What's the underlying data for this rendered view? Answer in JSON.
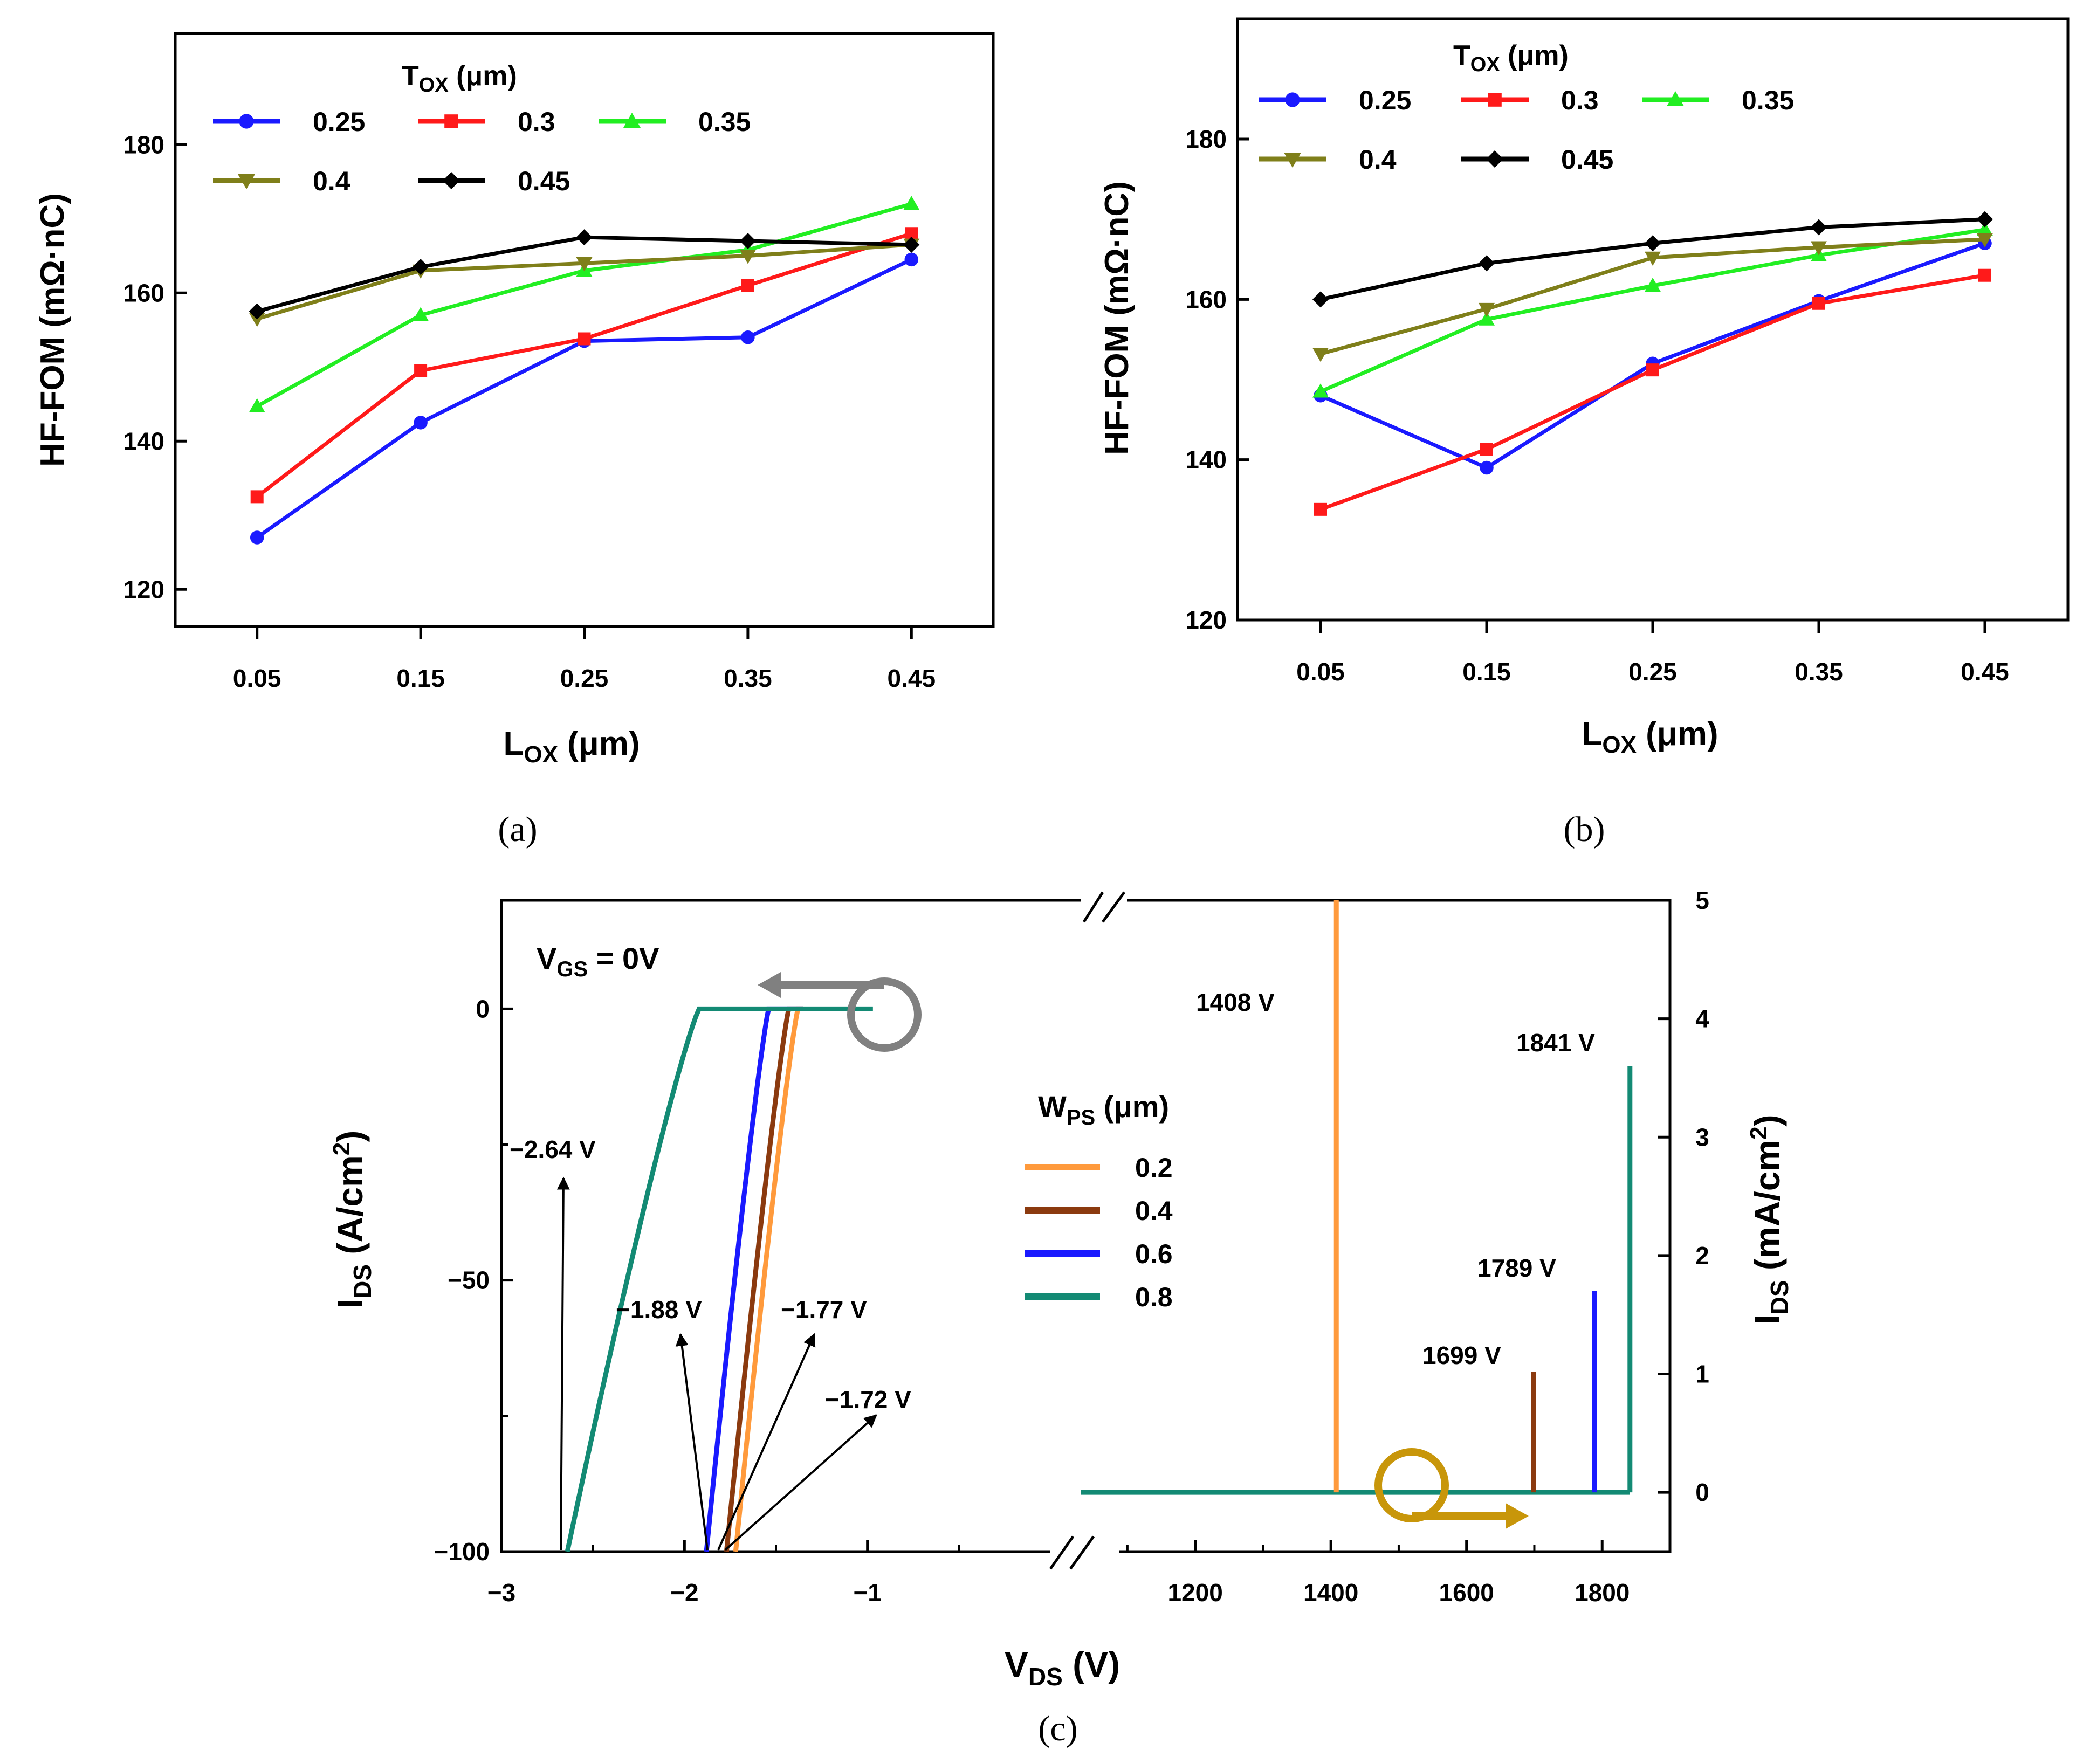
{
  "chart_data": [
    {
      "id": "a",
      "type": "line",
      "panel_label": "(a)",
      "xlabel": "L",
      "xlabel_sub": "OX",
      "xlabel_unit": " (μm)",
      "ylabel": "HF-FOM (mΩ·nC)",
      "legend_title": "T",
      "legend_title_sub": "OX",
      "legend_title_unit": " (μm)",
      "categories": [
        "0.05",
        "0.15",
        "0.25",
        "0.35",
        "0.45"
      ],
      "x": [
        0.05,
        0.15,
        0.25,
        0.35,
        0.45
      ],
      "xlim": [
        0.0,
        0.5
      ],
      "ylim": [
        115,
        195
      ],
      "yticks": [
        120,
        140,
        160,
        180
      ],
      "series": [
        {
          "name": "0.25",
          "color": "#1a1aff",
          "marker": "circle",
          "values": [
            127,
            142.5,
            153.5,
            154,
            164.5
          ]
        },
        {
          "name": "0.3",
          "color": "#ff1a1a",
          "marker": "square",
          "values": [
            132.5,
            149.5,
            153.8,
            161,
            168
          ]
        },
        {
          "name": "0.35",
          "color": "#22ee22",
          "marker": "triangle-up",
          "values": [
            144.7,
            157,
            163,
            165.8,
            172
          ]
        },
        {
          "name": "0.4",
          "color": "#7f7f1a",
          "marker": "triangle-down",
          "values": [
            156.5,
            163,
            164,
            165,
            166.5
          ]
        },
        {
          "name": "0.45",
          "color": "#000000",
          "marker": "diamond",
          "values": [
            157.5,
            163.5,
            167.5,
            167,
            166.5
          ]
        }
      ]
    },
    {
      "id": "b",
      "type": "line",
      "panel_label": "(b)",
      "xlabel": "L",
      "xlabel_sub": "OX",
      "xlabel_unit": " (μm)",
      "ylabel": "HF-FOM (mΩ·nC)",
      "legend_title": "T",
      "legend_title_sub": "OX",
      "legend_title_unit": " (μm)",
      "categories": [
        "0.05",
        "0.15",
        "0.25",
        "0.35",
        "0.45"
      ],
      "x": [
        0.05,
        0.15,
        0.25,
        0.35,
        0.45
      ],
      "xlim": [
        0.0,
        0.5
      ],
      "ylim": [
        120,
        195
      ],
      "yticks": [
        120,
        140,
        160,
        180
      ],
      "series": [
        {
          "name": "0.25",
          "color": "#1a1aff",
          "marker": "circle",
          "values": [
            148,
            139,
            152,
            159.8,
            167
          ]
        },
        {
          "name": "0.3",
          "color": "#ff1a1a",
          "marker": "square",
          "values": [
            133.8,
            141.3,
            151.2,
            159.5,
            163
          ]
        },
        {
          "name": "0.35",
          "color": "#22ee22",
          "marker": "triangle-up",
          "values": [
            148.5,
            157.5,
            161.7,
            165.5,
            168.7
          ]
        },
        {
          "name": "0.4",
          "color": "#7f7f1a",
          "marker": "triangle-down",
          "values": [
            153.2,
            158.8,
            165.2,
            166.5,
            167.5
          ]
        },
        {
          "name": "0.45",
          "color": "#000000",
          "marker": "diamond",
          "values": [
            160,
            164.5,
            167,
            169,
            170
          ]
        }
      ]
    },
    {
      "id": "c",
      "type": "line",
      "panel_label": "(c)",
      "xlabel": "V",
      "xlabel_sub": "DS",
      "xlabel_unit": " (V)",
      "ylabel_left": "I",
      "ylabel_left_sub": "DS",
      "ylabel_left_unit": " (A/cm",
      "ylabel_right": "I",
      "ylabel_right_sub": "DS",
      "ylabel_right_unit": " (mA/cm",
      "unit_sup": "2",
      "unit_close": ")",
      "condition": "V",
      "condition_sub": "GS",
      "condition_value": " = 0V",
      "legend_title": "W",
      "legend_title_sub": "PS",
      "legend_title_unit": " (μm)",
      "left_xlim": [
        -3,
        0.0
      ],
      "left_xticks": [
        "−3",
        "−2",
        "−1"
      ],
      "left_xtick_values": [
        -3,
        -2,
        -1
      ],
      "left_ylim": [
        -100,
        20
      ],
      "left_yticks": [
        "0",
        "−50",
        "−100"
      ],
      "left_ytick_values": [
        0,
        -50,
        -100
      ],
      "right_xlim": [
        1050,
        1900
      ],
      "right_xticks": [
        "1200",
        "1400",
        "1600",
        "1800"
      ],
      "right_xtick_values": [
        1200,
        1400,
        1600,
        1800
      ],
      "right_ylim": [
        -0.5,
        5
      ],
      "right_yticks": [
        "0",
        "1",
        "2",
        "3",
        "4",
        "5"
      ],
      "right_ytick_values": [
        0,
        1,
        2,
        3,
        4,
        5
      ],
      "series": [
        {
          "name": "0.2",
          "color": "#ff9a3c",
          "threshold_v": -1.72,
          "breakdown_v": 1408,
          "breakdown_top_mA": 5.0
        },
        {
          "name": "0.4",
          "color": "#8b3a0f",
          "threshold_v": -1.77,
          "breakdown_v": 1699,
          "breakdown_top_mA": 1.02
        },
        {
          "name": "0.6",
          "color": "#1a1aff",
          "threshold_v": -1.88,
          "breakdown_v": 1789,
          "breakdown_top_mA": 1.7
        },
        {
          "name": "0.8",
          "color": "#138a74",
          "threshold_v": -2.64,
          "breakdown_v": 1841,
          "breakdown_top_mA": 3.6
        }
      ],
      "annotations": {
        "threshold": [
          "−2.64 V",
          "−1.88 V",
          "−1.77 V",
          "−1.72 V"
        ],
        "breakdown": [
          "1408 V",
          "1699 V",
          "1789 V",
          "1841 V"
        ]
      },
      "arrow_colors": {
        "left": "#808080",
        "right": "#c8960a"
      }
    }
  ]
}
